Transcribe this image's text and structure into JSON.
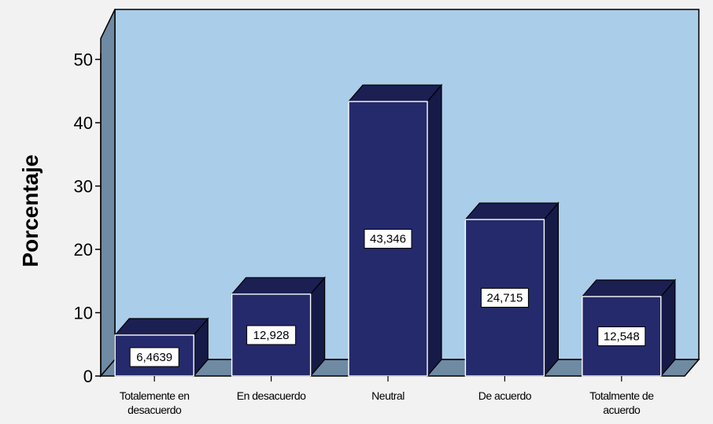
{
  "chart_data": {
    "type": "bar",
    "categories": [
      "Totalemente en desacuerdo",
      "En desacuerdo",
      "Neutral",
      "De acuerdo",
      "Totalmente de acuerdo"
    ],
    "category_lines": [
      [
        "Totalemente en",
        "desacuerdo"
      ],
      [
        "En desacuerdo"
      ],
      [
        "Neutral"
      ],
      [
        "De acuerdo"
      ],
      [
        "Totalmente de",
        "acuerdo"
      ]
    ],
    "values": [
      6.4639,
      12.928,
      43.346,
      24.715,
      12.548
    ],
    "data_labels": [
      "6,4639",
      "12,928",
      "43,346",
      "24,715",
      "12,548"
    ],
    "ylabel": "Porcentaje",
    "xlabel": "",
    "title": "",
    "ylim": [
      0,
      50
    ],
    "yticks": [
      0,
      10,
      20,
      30,
      40,
      50
    ],
    "grid": false,
    "legend": "none",
    "colors": {
      "bar_front": "#242a6b",
      "bar_top": "#1b1f52",
      "bar_side": "#161a47",
      "bar_edge": "#ffffff",
      "back_wall": "#aacde9",
      "side_wall": "#6f8aa3",
      "floor": "#6f8aa3",
      "page_bg": "#f2f2f2"
    }
  }
}
